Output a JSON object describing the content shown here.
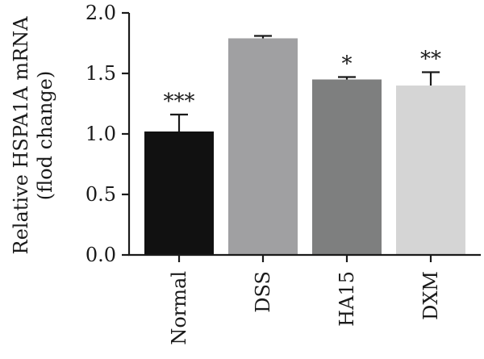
{
  "chart_data": {
    "type": "bar",
    "categories": [
      "Normal",
      "DSS",
      "HA15",
      "DXM"
    ],
    "values": [
      1.02,
      1.79,
      1.45,
      1.4
    ],
    "errors": [
      0.14,
      0.02,
      0.02,
      0.11
    ],
    "significance": [
      "***",
      "",
      "*",
      "**"
    ],
    "colors": [
      "#111111",
      "#a0a0a2",
      "#7e7f7f",
      "#d5d5d5"
    ],
    "title": "",
    "xlabel": "",
    "ylabel_line1": "Relative HSPA1A mRNA",
    "ylabel_line2": "(flod change)",
    "ylim": [
      0,
      2.0
    ],
    "yticks": [
      "0.0",
      "0.5",
      "1.0",
      "1.5",
      "2.0"
    ],
    "grid": false,
    "legend": "none"
  }
}
